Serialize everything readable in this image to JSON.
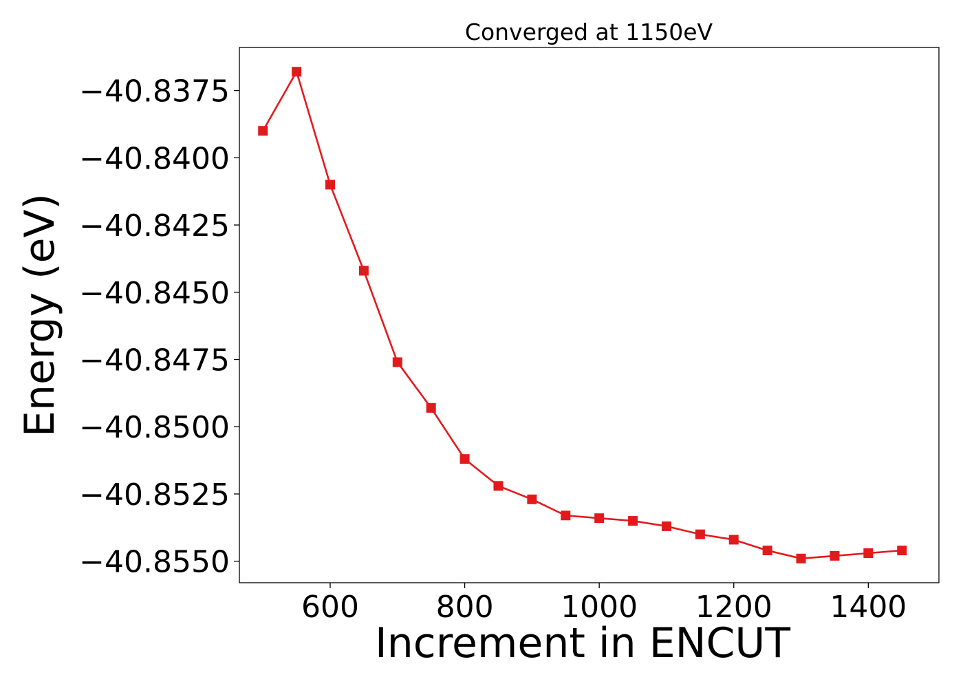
{
  "chart_data": {
    "type": "line",
    "title": "Converged at 1150eV",
    "xlabel": "Increment in ENCUT",
    "ylabel": "Energy (eV)",
    "xlim": [
      465,
      1505
    ],
    "ylim": [
      -40.8558,
      -40.8359
    ],
    "xticks": [
      600,
      800,
      1000,
      1200,
      1400
    ],
    "yticks": [
      -40.8375,
      -40.84,
      -40.8425,
      -40.845,
      -40.8475,
      -40.85,
      -40.8525,
      -40.855
    ],
    "ytick_labels": [
      "−40.8375",
      "−40.8400",
      "−40.8425",
      "−40.8450",
      "−40.8475",
      "−40.8500",
      "−40.8525",
      "−40.8550"
    ],
    "grid": false,
    "series": [
      {
        "color": "#e31a1c",
        "marker": "square",
        "x": [
          500,
          550,
          600,
          650,
          700,
          750,
          800,
          850,
          900,
          950,
          1000,
          1050,
          1100,
          1150,
          1200,
          1250,
          1300,
          1350,
          1400,
          1450
        ],
        "y": [
          -40.839,
          -40.8368,
          -40.841,
          -40.8442,
          -40.8476,
          -40.8493,
          -40.8512,
          -40.8522,
          -40.8527,
          -40.8533,
          -40.8534,
          -40.8535,
          -40.8537,
          -40.854,
          -40.8542,
          -40.8546,
          -40.8549,
          -40.8548,
          -40.8547,
          -40.8546
        ]
      }
    ]
  }
}
